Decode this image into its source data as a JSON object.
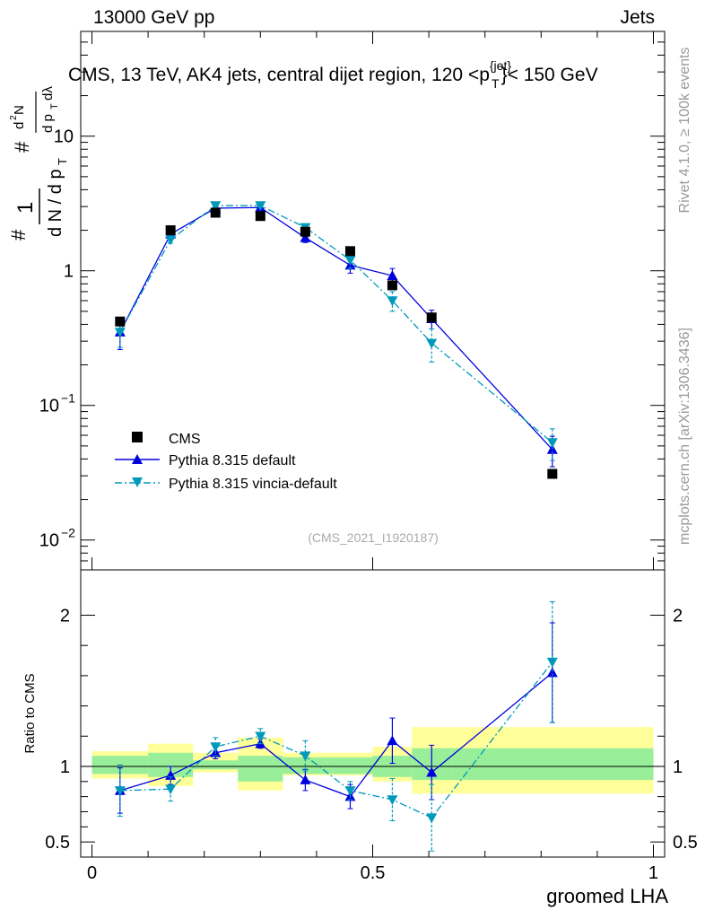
{
  "header": {
    "left": "13000 GeV pp",
    "right": "Jets"
  },
  "side": {
    "rivet": "Rivet 4.1.0, ≥ 100k events",
    "mcplots": "mcplots.cern.ch [arXiv:1306.3436]"
  },
  "chart_data": {
    "type": "scatter",
    "title": "CMS, 13 TeV, AK4 jets, central dijet region, 120 <p",
    "title_sup": "{jet}",
    "title_sub": "T",
    "title_tail": "}< 150 GeV",
    "xlabel": "groomed LHA",
    "ylabel_ratio": "Ratio to CMS",
    "analysis_id": "(CMS_2021_I1920187)",
    "xlim": [
      -0.02,
      1.02
    ],
    "ylim_main": [
      0.006,
      60
    ],
    "ylim_ratio": [
      0.4,
      2.3
    ],
    "x_ticks": [
      {
        "v": 0,
        "label": "0"
      },
      {
        "v": 0.5,
        "label": "0.5"
      },
      {
        "v": 1,
        "label": "1"
      }
    ],
    "y_ticks_main": [
      {
        "v": 10,
        "base": "10",
        "exp": ""
      },
      {
        "v": 1,
        "base": "1",
        "exp": ""
      },
      {
        "v": 0.1,
        "base": "10",
        "exp": "−1"
      },
      {
        "v": 0.01,
        "base": "10",
        "exp": "−2"
      }
    ],
    "y_ticks_ratio": [
      {
        "v": 2,
        "label": "2"
      },
      {
        "v": 1,
        "label": "1"
      },
      {
        "v": 0.5,
        "label": "0.5"
      }
    ],
    "bin_edges": [
      0,
      0.1,
      0.18,
      0.26,
      0.34,
      0.42,
      0.5,
      0.57,
      0.64,
      1.0
    ],
    "band_inner": [
      [
        0.95,
        1.07
      ],
      [
        0.93,
        1.09
      ],
      [
        0.98,
        1.04
      ],
      [
        0.9,
        1.07
      ],
      [
        0.95,
        1.06
      ],
      [
        0.95,
        1.06
      ],
      [
        0.93,
        1.07
      ],
      [
        0.91,
        1.12
      ],
      [
        0.91,
        1.12
      ]
    ],
    "band_outer": [
      [
        0.92,
        1.1
      ],
      [
        0.87,
        1.15
      ],
      [
        0.96,
        1.09
      ],
      [
        0.84,
        1.19
      ],
      [
        0.94,
        1.09
      ],
      [
        0.94,
        1.09
      ],
      [
        0.9,
        1.13
      ],
      [
        0.82,
        1.26
      ],
      [
        0.82,
        1.26
      ]
    ],
    "series": [
      {
        "name": "CMS",
        "x": [
          0.05,
          0.14,
          0.22,
          0.3,
          0.38,
          0.46,
          0.535,
          0.605,
          0.82
        ],
        "y": [
          0.42,
          2.0,
          2.7,
          2.55,
          1.95,
          1.4,
          0.78,
          0.45,
          0.031
        ],
        "color": "#000000"
      },
      {
        "name": "Pythia 8.315 default",
        "x": [
          0.05,
          0.14,
          0.22,
          0.3,
          0.38,
          0.46,
          0.535,
          0.605,
          0.82
        ],
        "y": [
          0.35,
          1.87,
          2.92,
          2.95,
          1.76,
          1.1,
          0.92,
          0.44,
          0.047
        ],
        "yerr": [
          0.09,
          0.1,
          0.08,
          0.07,
          0.14,
          0.14,
          0.12,
          0.07,
          0.012
        ],
        "ratio": [
          0.84,
          0.94,
          1.09,
          1.15,
          0.91,
          0.8,
          1.17,
          0.96,
          1.62
        ],
        "ratio_err": [
          0.15,
          0.06,
          0.04,
          0.03,
          0.07,
          0.08,
          0.15,
          0.18,
          0.33
        ],
        "color": "#0000dd",
        "style": "solid"
      },
      {
        "name": "Pythia 8.315 vincia-default",
        "x": [
          0.05,
          0.14,
          0.22,
          0.3,
          0.38,
          0.46,
          0.535,
          0.605,
          0.82
        ],
        "y": [
          0.35,
          1.7,
          3.05,
          3.05,
          2.1,
          1.2,
          0.6,
          0.29,
          0.053
        ],
        "yerr": [
          0.08,
          0.1,
          0.07,
          0.07,
          0.1,
          0.16,
          0.1,
          0.08,
          0.014
        ],
        "ratio": [
          0.84,
          0.85,
          1.13,
          1.2,
          1.07,
          0.84,
          0.78,
          0.66,
          1.69
        ],
        "ratio_err": [
          0.17,
          0.08,
          0.06,
          0.05,
          0.1,
          0.06,
          0.14,
          0.22,
          0.4
        ],
        "color": "#0099bb",
        "style": "dashdot"
      }
    ]
  }
}
